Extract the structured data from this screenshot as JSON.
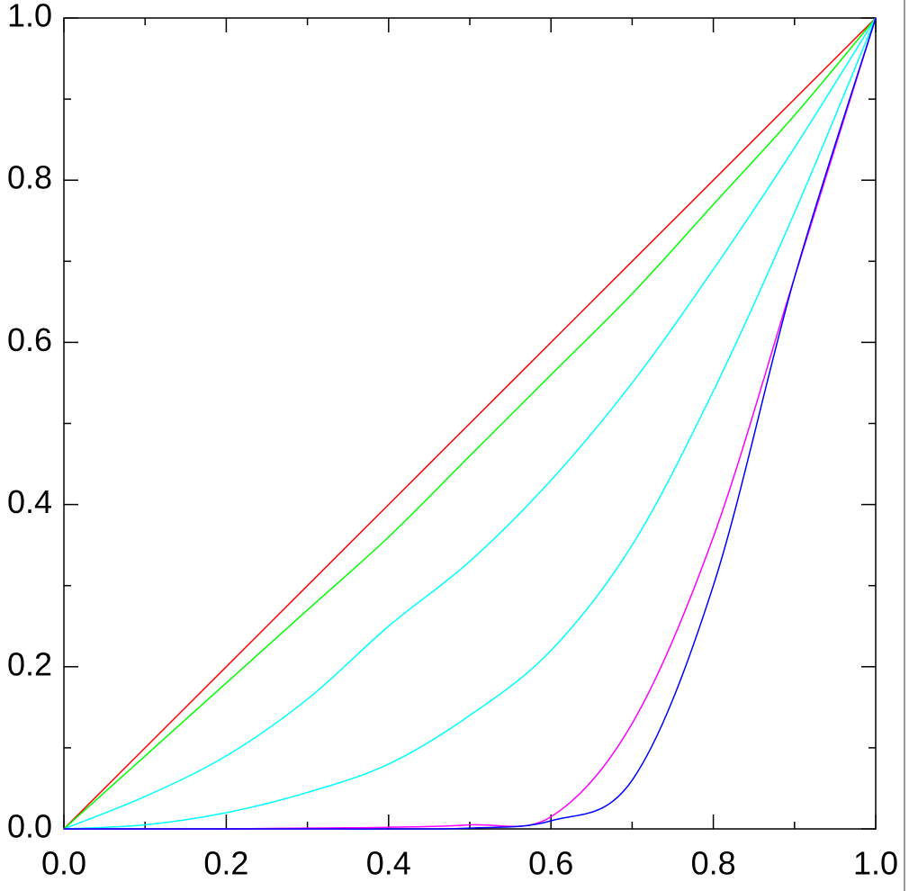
{
  "chart_data": {
    "type": "line",
    "x": [
      0,
      0.1,
      0.2,
      0.3,
      0.4,
      0.5,
      0.6,
      0.7,
      0.8,
      0.9,
      1.0
    ],
    "series": [
      {
        "color": "#ff0000",
        "values": [
          0,
          0.1,
          0.2,
          0.3,
          0.4,
          0.5,
          0.6,
          0.7,
          0.8,
          0.9,
          1.0
        ]
      },
      {
        "color": "#00ff00",
        "values": [
          0,
          0.09,
          0.18,
          0.27,
          0.36,
          0.46,
          0.56,
          0.66,
          0.77,
          0.88,
          1.0
        ]
      },
      {
        "color": "#00ffff",
        "values": [
          0,
          0.04,
          0.09,
          0.16,
          0.25,
          0.33,
          0.43,
          0.55,
          0.69,
          0.84,
          1.0
        ]
      },
      {
        "color": "#00ffff",
        "values": [
          0,
          0.005,
          0.02,
          0.045,
          0.08,
          0.14,
          0.22,
          0.35,
          0.54,
          0.76,
          1.0
        ]
      },
      {
        "color": "#ff00ff",
        "values": [
          0,
          0,
          0,
          0.001,
          0.002,
          0.005,
          0.015,
          0.13,
          0.36,
          0.68,
          1.0
        ]
      },
      {
        "color": "#0000ff",
        "values": [
          0,
          0,
          0,
          0,
          0,
          0.001,
          0.01,
          0.06,
          0.3,
          0.68,
          1.0
        ]
      }
    ],
    "xlim": [
      0,
      1.0
    ],
    "ylim": [
      0,
      1.0
    ],
    "xticks": [
      {
        "value": 0,
        "label": "0.0"
      },
      0.2,
      0.4,
      0.6,
      0.8,
      {
        "value": 1,
        "label": "1.0"
      }
    ],
    "yticks": [
      {
        "value": 0,
        "label": "0.0"
      },
      0.2,
      0.4,
      0.6,
      0.8,
      {
        "value": 1,
        "label": "1.0"
      }
    ],
    "xminor": [
      0.1,
      0.3,
      0.5,
      0.7,
      0.9
    ],
    "yminor": [
      0.1,
      0.3,
      0.5,
      0.7,
      0.9
    ],
    "grid": false
  }
}
